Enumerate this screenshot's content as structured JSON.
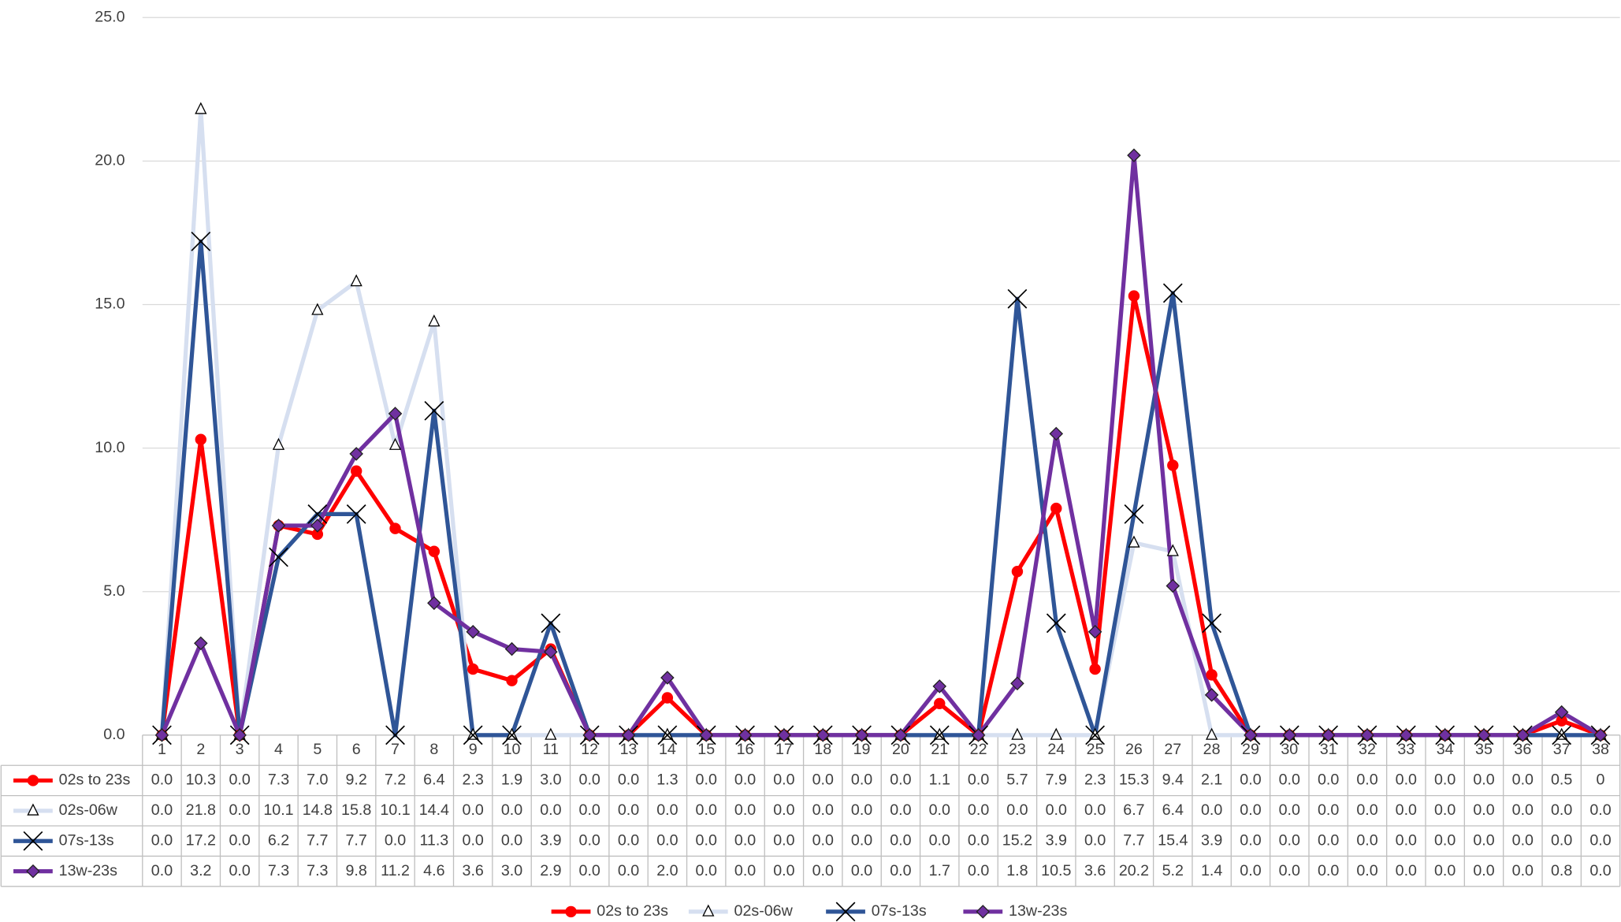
{
  "chart_data": {
    "type": "line",
    "grid": true,
    "legend": "bottom",
    "categories": [
      1,
      2,
      3,
      4,
      5,
      6,
      7,
      8,
      9,
      10,
      11,
      12,
      13,
      14,
      15,
      16,
      17,
      18,
      19,
      20,
      21,
      22,
      23,
      24,
      25,
      26,
      27,
      28,
      29,
      30,
      31,
      32,
      33,
      34,
      35,
      36,
      37,
      38
    ],
    "ylim": [
      0,
      25
    ],
    "yticks": [
      {
        "value": 0,
        "label": "0.0"
      },
      {
        "value": 5,
        "label": "5.0"
      },
      {
        "value": 10,
        "label": "10.0"
      },
      {
        "value": 15,
        "label": "15.0"
      },
      {
        "value": 20,
        "label": "20.0"
      },
      {
        "value": 25,
        "label": "25.0"
      }
    ],
    "series": [
      {
        "name": "02s to 23s",
        "color": "#ff0000",
        "marker": "circle",
        "values": [
          0,
          10.3,
          0,
          7.3,
          7,
          9.2,
          7.2,
          6.4,
          2.3,
          1.9,
          3,
          0,
          0,
          1.3,
          0,
          0,
          0,
          0,
          0,
          0,
          1.1,
          0,
          5.7,
          7.9,
          2.3,
          15.3,
          9.4,
          2.1,
          0,
          0,
          0,
          0,
          0,
          0,
          0,
          0,
          0.5,
          0
        ],
        "value_labels": [
          "0.0",
          "10.3",
          "0.0",
          "7.3",
          "7.0",
          "9.2",
          "7.2",
          "6.4",
          "2.3",
          "1.9",
          "3.0",
          "0.0",
          "0.0",
          "1.3",
          "0.0",
          "0.0",
          "0.0",
          "0.0",
          "0.0",
          "0.0",
          "1.1",
          "0.0",
          "5.7",
          "7.9",
          "2.3",
          "15.3",
          "9.4",
          "2.1",
          "0.0",
          "0.0",
          "0.0",
          "0.0",
          "0.0",
          "0.0",
          "0.0",
          "0.0",
          "0.5",
          "0"
        ]
      },
      {
        "name": "02s-06w",
        "color": "#d6dff0",
        "marker": "triangle",
        "values": [
          0,
          21.8,
          0,
          10.1,
          14.8,
          15.8,
          10.1,
          14.4,
          0,
          0,
          0,
          0,
          0,
          0,
          0,
          0,
          0,
          0,
          0,
          0,
          0,
          0,
          0,
          0,
          0,
          6.7,
          6.4,
          0,
          0,
          0,
          0,
          0,
          0,
          0,
          0,
          0,
          0,
          0
        ],
        "value_labels": [
          "0.0",
          "21.8",
          "0.0",
          "10.1",
          "14.8",
          "15.8",
          "10.1",
          "14.4",
          "0.0",
          "0.0",
          "0.0",
          "0.0",
          "0.0",
          "0.0",
          "0.0",
          "0.0",
          "0.0",
          "0.0",
          "0.0",
          "0.0",
          "0.0",
          "0.0",
          "0.0",
          "0.0",
          "0.0",
          "6.7",
          "6.4",
          "0.0",
          "0.0",
          "0.0",
          "0.0",
          "0.0",
          "0.0",
          "0.0",
          "0.0",
          "0.0",
          "0.0",
          "0.0"
        ]
      },
      {
        "name": "07s-13s",
        "color": "#2f5597",
        "marker": "x",
        "values": [
          0,
          17.2,
          0,
          6.2,
          7.7,
          7.7,
          0,
          11.3,
          0,
          0,
          3.9,
          0,
          0,
          0,
          0,
          0,
          0,
          0,
          0,
          0,
          0,
          0,
          15.2,
          3.9,
          0,
          7.7,
          15.4,
          3.9,
          0,
          0,
          0,
          0,
          0,
          0,
          0,
          0,
          0,
          0
        ],
        "value_labels": [
          "0.0",
          "17.2",
          "0.0",
          "6.2",
          "7.7",
          "7.7",
          "0.0",
          "11.3",
          "0.0",
          "0.0",
          "3.9",
          "0.0",
          "0.0",
          "0.0",
          "0.0",
          "0.0",
          "0.0",
          "0.0",
          "0.0",
          "0.0",
          "0.0",
          "0.0",
          "15.2",
          "3.9",
          "0.0",
          "7.7",
          "15.4",
          "3.9",
          "0.0",
          "0.0",
          "0.0",
          "0.0",
          "0.0",
          "0.0",
          "0.0",
          "0.0",
          "0.0",
          "0.0"
        ]
      },
      {
        "name": "13w-23s",
        "color": "#7030a0",
        "marker": "diamond",
        "values": [
          0,
          3.2,
          0,
          7.3,
          7.3,
          9.8,
          11.2,
          4.6,
          3.6,
          3,
          2.9,
          0,
          0,
          2,
          0,
          0,
          0,
          0,
          0,
          0,
          1.7,
          0,
          1.8,
          10.5,
          3.6,
          20.2,
          5.2,
          1.4,
          0,
          0,
          0,
          0,
          0,
          0,
          0,
          0,
          0.8,
          0
        ],
        "value_labels": [
          "0.0",
          "3.2",
          "0.0",
          "7.3",
          "7.3",
          "9.8",
          "11.2",
          "4.6",
          "3.6",
          "3.0",
          "2.9",
          "0.0",
          "0.0",
          "2.0",
          "0.0",
          "0.0",
          "0.0",
          "0.0",
          "0.0",
          "0.0",
          "1.7",
          "0.0",
          "1.8",
          "10.5",
          "3.6",
          "20.2",
          "5.2",
          "1.4",
          "0.0",
          "0.0",
          "0.0",
          "0.0",
          "0.0",
          "0.0",
          "0.0",
          "0.0",
          "0.8",
          "0.0"
        ]
      }
    ]
  }
}
